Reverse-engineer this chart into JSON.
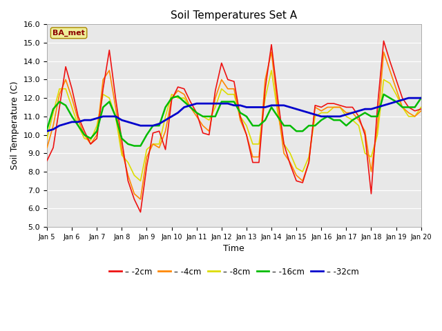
{
  "title": "Soil Temperatures Set A",
  "xlabel": "Time",
  "ylabel": "Soil Temperature (C)",
  "ylim": [
    5.0,
    16.0
  ],
  "yticks": [
    5.0,
    6.0,
    7.0,
    8.0,
    9.0,
    10.0,
    11.0,
    12.0,
    13.0,
    14.0,
    15.0,
    16.0
  ],
  "xtick_labels": [
    "Jan 5",
    "Jan 6",
    "Jan 7",
    "Jan 8",
    "Jan 9",
    "Jan 10",
    "Jan 11",
    "Jan 12",
    "Jan 13",
    "Jan 14",
    "Jan 15",
    "Jan 16",
    "Jan 17",
    "Jan 18",
    "Jan 19",
    "Jan 20"
  ],
  "label_box": "BA_met",
  "fig_bg": "#ffffff",
  "plot_bg": "#e8e8e8",
  "grid_color": "#ffffff",
  "colors": {
    "-2cm": "#ee1111",
    "-4cm": "#ff8800",
    "-8cm": "#dddd00",
    "-16cm": "#00bb00",
    "-32cm": "#0000cc"
  },
  "lw": {
    "-2cm": 1.2,
    "-4cm": 1.2,
    "-8cm": 1.2,
    "-16cm": 1.8,
    "-32cm": 2.0
  },
  "data_2cm": [
    8.6,
    9.3,
    11.5,
    13.7,
    12.5,
    11.0,
    10.2,
    9.5,
    9.8,
    12.5,
    14.6,
    12.0,
    9.7,
    7.5,
    6.5,
    5.8,
    8.3,
    10.1,
    10.2,
    9.2,
    11.9,
    12.6,
    12.5,
    11.8,
    11.2,
    10.1,
    10.0,
    12.4,
    13.9,
    13.0,
    12.9,
    11.0,
    10.0,
    8.5,
    8.5,
    12.5,
    14.9,
    12.0,
    9.5,
    8.4,
    7.5,
    7.4,
    8.5,
    11.6,
    11.5,
    11.7,
    11.7,
    11.6,
    11.5,
    11.5,
    11.0,
    10.0,
    6.8,
    11.5,
    15.1,
    14.0,
    13.0,
    12.0,
    11.5,
    11.3,
    11.4
  ],
  "data_4cm": [
    9.3,
    10.5,
    12.2,
    13.0,
    12.0,
    10.8,
    10.0,
    9.5,
    10.0,
    13.0,
    13.5,
    11.5,
    9.2,
    7.8,
    6.8,
    6.5,
    8.8,
    9.5,
    9.3,
    10.2,
    12.0,
    12.4,
    12.2,
    11.5,
    11.0,
    10.5,
    10.2,
    12.0,
    13.0,
    12.5,
    12.5,
    10.8,
    10.0,
    8.8,
    8.8,
    13.0,
    14.5,
    11.5,
    9.0,
    8.5,
    7.8,
    7.5,
    8.5,
    11.5,
    11.3,
    11.5,
    11.5,
    11.5,
    11.2,
    11.2,
    10.8,
    10.2,
    8.0,
    10.5,
    14.5,
    13.5,
    12.5,
    11.5,
    11.2,
    11.0,
    11.3
  ],
  "data_8cm": [
    9.8,
    11.2,
    12.5,
    12.5,
    11.5,
    10.5,
    9.8,
    9.7,
    10.5,
    12.2,
    12.0,
    11.0,
    8.9,
    8.5,
    7.8,
    7.5,
    9.2,
    9.5,
    9.5,
    11.0,
    12.2,
    12.0,
    12.0,
    11.5,
    11.2,
    11.0,
    10.8,
    11.5,
    12.5,
    12.2,
    12.2,
    11.0,
    10.5,
    9.5,
    9.5,
    12.0,
    13.5,
    11.2,
    9.5,
    9.0,
    8.2,
    8.0,
    8.8,
    11.0,
    11.2,
    11.2,
    11.5,
    11.5,
    11.0,
    10.8,
    10.5,
    9.0,
    8.8,
    10.0,
    13.0,
    12.8,
    12.2,
    11.5,
    11.0,
    11.0,
    11.5
  ],
  "data_16cm": [
    10.3,
    11.4,
    11.8,
    11.6,
    11.0,
    10.5,
    10.0,
    9.8,
    10.2,
    11.5,
    11.8,
    11.0,
    9.8,
    9.5,
    9.4,
    9.4,
    10.0,
    10.5,
    10.5,
    11.5,
    12.0,
    12.1,
    11.8,
    11.5,
    11.2,
    11.0,
    11.0,
    11.0,
    11.8,
    11.8,
    11.8,
    11.2,
    11.0,
    10.5,
    10.5,
    10.8,
    11.5,
    11.0,
    10.5,
    10.5,
    10.2,
    10.2,
    10.5,
    10.5,
    10.8,
    11.0,
    10.8,
    10.8,
    10.5,
    10.8,
    11.0,
    11.2,
    11.0,
    11.0,
    12.2,
    12.0,
    11.8,
    11.5,
    11.5,
    11.5,
    12.0
  ],
  "data_32cm": [
    10.2,
    10.3,
    10.5,
    10.6,
    10.7,
    10.7,
    10.8,
    10.8,
    10.9,
    11.0,
    11.0,
    11.0,
    10.8,
    10.7,
    10.6,
    10.5,
    10.5,
    10.5,
    10.6,
    10.8,
    11.0,
    11.2,
    11.5,
    11.6,
    11.7,
    11.7,
    11.7,
    11.7,
    11.7,
    11.7,
    11.6,
    11.6,
    11.5,
    11.5,
    11.5,
    11.5,
    11.6,
    11.6,
    11.6,
    11.5,
    11.4,
    11.3,
    11.2,
    11.1,
    11.0,
    11.0,
    11.0,
    11.0,
    11.1,
    11.2,
    11.3,
    11.4,
    11.4,
    11.5,
    11.6,
    11.7,
    11.8,
    11.9,
    12.0,
    12.0,
    12.0
  ]
}
